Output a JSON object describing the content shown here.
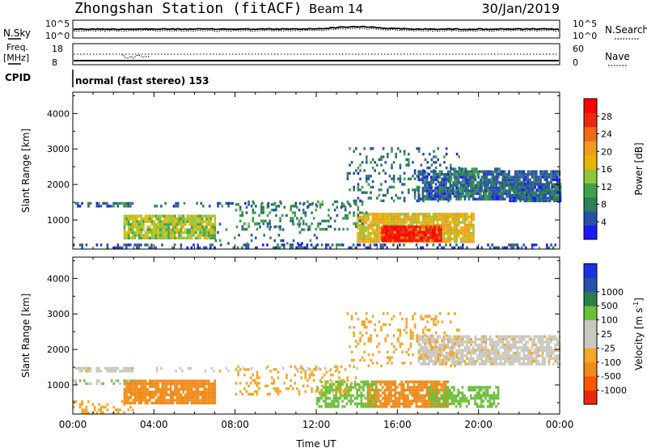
{
  "header": {
    "station": "Zhongshan Station (fitACF)",
    "beam": "Beam 14",
    "date": "30/Jan/2019"
  },
  "top_panels": {
    "nsky_label": "N.Sky",
    "nsearch_label": "N.Search",
    "noise_ticks_left": [
      "10^5",
      "10^0"
    ],
    "noise_ticks_right": [
      "10^5",
      "10^0"
    ],
    "freq_label_1": "Freq.",
    "freq_label_2": "[MHz]",
    "freq_ticks": [
      "18",
      "8"
    ],
    "nave_label": "Nave",
    "nave_ticks": [
      "60",
      "0"
    ],
    "cpid_label": "CPID",
    "cpid_text": "normal (fast stereo) 153"
  },
  "colors": {
    "power": [
      "#1a1aff",
      "#2a4fa8",
      "#2f7d5a",
      "#3fa24a",
      "#8fc63a",
      "#e8b600",
      "#f39a1e",
      "#ee6a18",
      "#e8290f",
      "#ff0000"
    ],
    "velocity": [
      "#e8290f",
      "#ff5500",
      "#f08a18",
      "#f5a623",
      "#c8c8c0",
      "#c8c8c0",
      "#6cbf3a",
      "#2e7d4f",
      "#2a4fa8",
      "#1a33dd"
    ]
  },
  "chart_data": [
    {
      "type": "heatmap",
      "name": "power",
      "xlabel": "",
      "ylabel": "Slant Range [km]",
      "colorbar_label": "Power [dB]",
      "colorbar_ticks": [
        "28",
        "24",
        "20",
        "16",
        "12",
        "8",
        "4"
      ],
      "colorbar_values": [
        28,
        24,
        20,
        16,
        12,
        8,
        4
      ],
      "colorbar_range": [
        0,
        32
      ],
      "ylim": [
        180,
        4600
      ],
      "yticks": [
        1000,
        2000,
        3000,
        4000
      ],
      "ytick_labels": [
        "1000",
        "2000",
        "3000",
        "4000"
      ],
      "xlim_hours": [
        0,
        24
      ],
      "regions": [
        {
          "t0": 2.5,
          "t1": 7.0,
          "r0": 450,
          "r1": 1100,
          "value": 15,
          "density": 0.9
        },
        {
          "t0": 14.0,
          "t1": 19.8,
          "r0": 350,
          "r1": 1150,
          "value": 18,
          "density": 0.9
        },
        {
          "t0": 15.2,
          "t1": 18.2,
          "r0": 380,
          "r1": 800,
          "value": 28,
          "density": 0.95
        },
        {
          "t0": 0.1,
          "t1": 3.0,
          "r0": 1350,
          "r1": 1480,
          "value": 6,
          "density": 0.8
        },
        {
          "t0": 0.0,
          "t1": 24.0,
          "r0": 180,
          "r1": 320,
          "value": 5,
          "density": 0.35
        },
        {
          "t0": 4.0,
          "t1": 14.0,
          "r0": 1350,
          "r1": 1500,
          "value": 6,
          "density": 0.25
        },
        {
          "t0": 8.0,
          "t1": 14.5,
          "r0": 700,
          "r1": 1500,
          "value": 9,
          "density": 0.2
        },
        {
          "t0": 13.5,
          "t1": 19.0,
          "r0": 1500,
          "r1": 3000,
          "value": 7,
          "density": 0.2
        },
        {
          "t0": 17.0,
          "t1": 24.0,
          "r0": 1550,
          "r1": 2350,
          "value": 6,
          "density": 0.8
        },
        {
          "t0": 21.5,
          "t1": 24.0,
          "r0": 1500,
          "r1": 2000,
          "value": 6,
          "density": 0.9
        },
        {
          "t0": 18.5,
          "t1": 21.5,
          "r0": 1700,
          "r1": 2400,
          "value": 8,
          "density": 0.5
        },
        {
          "t0": 7.0,
          "t1": 12.0,
          "r0": 300,
          "r1": 900,
          "value": 7,
          "density": 0.12
        }
      ]
    },
    {
      "type": "heatmap",
      "name": "velocity",
      "xlabel": "Time UT",
      "ylabel": "Slant Range [km]",
      "colorbar_label": "Velocity [m s",
      "colorbar_label_sup": "-1",
      "colorbar_label_end": "]",
      "colorbar_ticks": [
        "1000",
        "500",
        "100",
        "25",
        "-25",
        "-100",
        "-500",
        "-1000"
      ],
      "colorbar_values": [
        1000,
        500,
        100,
        25,
        -25,
        -100,
        -500,
        -1000
      ],
      "ylim": [
        180,
        4600
      ],
      "yticks": [
        1000,
        2000,
        3000,
        4000
      ],
      "ytick_labels": [
        "1000",
        "2000",
        "3000",
        "4000"
      ],
      "xlim_hours": [
        0,
        24
      ],
      "xticks": [
        0,
        4,
        8,
        12,
        16,
        20,
        24
      ],
      "xtick_labels": [
        "00:00",
        "04:00",
        "08:00",
        "12:00",
        "16:00",
        "20:00",
        "00:00"
      ],
      "regions": [
        {
          "t0": 2.5,
          "t1": 7.0,
          "r0": 450,
          "r1": 1100,
          "value": -200,
          "density": 0.9
        },
        {
          "t0": 14.5,
          "t1": 18.5,
          "r0": 350,
          "r1": 1100,
          "value": -200,
          "density": 0.85
        },
        {
          "t0": 12.0,
          "t1": 15.0,
          "r0": 350,
          "r1": 1050,
          "value": 200,
          "density": 0.55
        },
        {
          "t0": 17.5,
          "t1": 21.0,
          "r0": 350,
          "r1": 950,
          "value": 200,
          "density": 0.6
        },
        {
          "t0": 0.1,
          "t1": 3.0,
          "r0": 1350,
          "r1": 1480,
          "value": 0,
          "density": 0.8
        },
        {
          "t0": 0.0,
          "t1": 3.0,
          "r0": 180,
          "r1": 500,
          "value": -60,
          "density": 0.3
        },
        {
          "t0": 17.0,
          "t1": 24.0,
          "r0": 1550,
          "r1": 2350,
          "value": 0,
          "density": 0.8
        },
        {
          "t0": 13.5,
          "t1": 19.0,
          "r0": 1500,
          "r1": 3000,
          "value": -60,
          "density": 0.18
        },
        {
          "t0": 8.0,
          "t1": 14.0,
          "r0": 700,
          "r1": 1500,
          "value": -60,
          "density": 0.18
        },
        {
          "t0": 0.0,
          "t1": 3.0,
          "r0": 1000,
          "r1": 1150,
          "value": 100,
          "density": 0.4
        },
        {
          "t0": 4.0,
          "t1": 14.0,
          "r0": 1350,
          "r1": 1500,
          "value": 0,
          "density": 0.2
        }
      ]
    }
  ]
}
